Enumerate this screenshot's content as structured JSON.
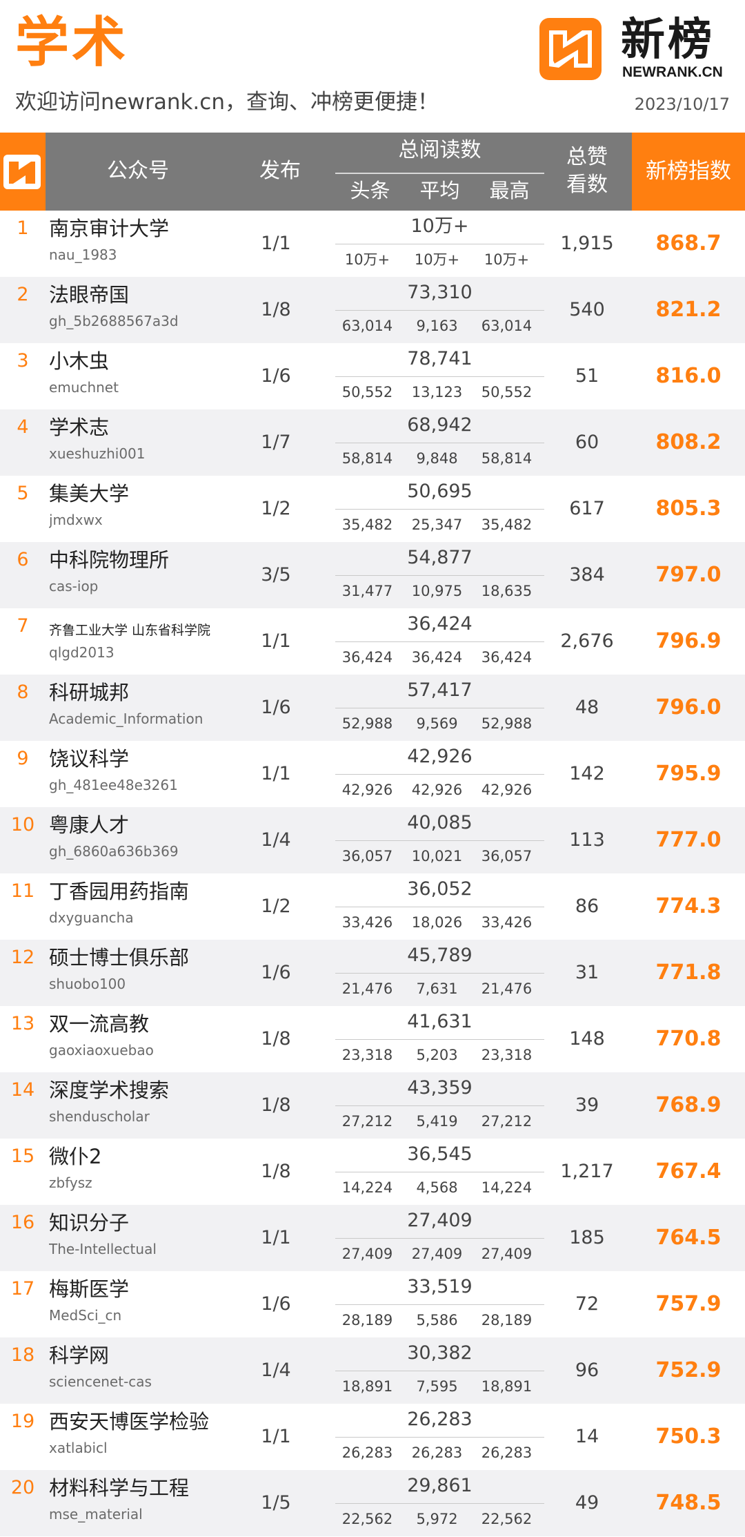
{
  "header": {
    "category": "学术",
    "welcome": "欢迎访问newrank.cn，查询、冲榜更便捷！",
    "date": "2023/10/17",
    "brand_cn": "新榜",
    "brand_en": "NEWRANK.CN",
    "brand_icon": "newrank-logo-icon"
  },
  "colors": {
    "accent": "#ff7f10",
    "header_gray": "#7a7a7a",
    "row_alt": "#f1f1f3"
  },
  "table": {
    "columns": {
      "account": "公众号",
      "publish": "发布",
      "total_reads": "总阅读数",
      "headline": "头条",
      "average": "平均",
      "max": "最高",
      "likes": "总赞\n看数",
      "index": "新榜指数"
    },
    "rows": [
      {
        "rank": "1",
        "name": "南京审计大学",
        "id": "nau_1983",
        "publish": "1/1",
        "avg_main": "10万+",
        "head": "10万+",
        "avg": "10万+",
        "max": "10万+",
        "likes": "1,915",
        "index": "868.7"
      },
      {
        "rank": "2",
        "name": "法眼帝国",
        "id": "gh_5b2688567a3d",
        "publish": "1/8",
        "avg_main": "73,310",
        "head": "63,014",
        "avg": "9,163",
        "max": "63,014",
        "likes": "540",
        "index": "821.2"
      },
      {
        "rank": "3",
        "name": "小木虫",
        "id": "emuchnet",
        "publish": "1/6",
        "avg_main": "78,741",
        "head": "50,552",
        "avg": "13,123",
        "max": "50,552",
        "likes": "51",
        "index": "816.0"
      },
      {
        "rank": "4",
        "name": "学术志",
        "id": "xueshuzhi001",
        "publish": "1/7",
        "avg_main": "68,942",
        "head": "58,814",
        "avg": "9,848",
        "max": "58,814",
        "likes": "60",
        "index": "808.2"
      },
      {
        "rank": "5",
        "name": "集美大学",
        "id": "jmdxwx",
        "publish": "1/2",
        "avg_main": "50,695",
        "head": "35,482",
        "avg": "25,347",
        "max": "35,482",
        "likes": "617",
        "index": "805.3"
      },
      {
        "rank": "6",
        "name": "中科院物理所",
        "id": "cas-iop",
        "publish": "3/5",
        "avg_main": "54,877",
        "head": "31,477",
        "avg": "10,975",
        "max": "18,635",
        "likes": "384",
        "index": "797.0"
      },
      {
        "rank": "7",
        "name": "齐鲁工业大学 山东省科学院",
        "id": "qlgd2013",
        "publish": "1/1",
        "avg_main": "36,424",
        "head": "36,424",
        "avg": "36,424",
        "max": "36,424",
        "likes": "2,676",
        "index": "796.9",
        "small": true
      },
      {
        "rank": "8",
        "name": "科研城邦",
        "id": "Academic_Information",
        "publish": "1/6",
        "avg_main": "57,417",
        "head": "52,988",
        "avg": "9,569",
        "max": "52,988",
        "likes": "48",
        "index": "796.0"
      },
      {
        "rank": "9",
        "name": "饶议科学",
        "id": "gh_481ee48e3261",
        "publish": "1/1",
        "avg_main": "42,926",
        "head": "42,926",
        "avg": "42,926",
        "max": "42,926",
        "likes": "142",
        "index": "795.9"
      },
      {
        "rank": "10",
        "name": "粤康人才",
        "id": "gh_6860a636b369",
        "publish": "1/4",
        "avg_main": "40,085",
        "head": "36,057",
        "avg": "10,021",
        "max": "36,057",
        "likes": "113",
        "index": "777.0"
      },
      {
        "rank": "11",
        "name": "丁香园用药指南",
        "id": "dxyguancha",
        "publish": "1/2",
        "avg_main": "36,052",
        "head": "33,426",
        "avg": "18,026",
        "max": "33,426",
        "likes": "86",
        "index": "774.3"
      },
      {
        "rank": "12",
        "name": "硕士博士俱乐部",
        "id": "shuobo100",
        "publish": "1/6",
        "avg_main": "45,789",
        "head": "21,476",
        "avg": "7,631",
        "max": "21,476",
        "likes": "31",
        "index": "771.8"
      },
      {
        "rank": "13",
        "name": "双一流高教",
        "id": "gaoxiaoxuebao",
        "publish": "1/8",
        "avg_main": "41,631",
        "head": "23,318",
        "avg": "5,203",
        "max": "23,318",
        "likes": "148",
        "index": "770.8"
      },
      {
        "rank": "14",
        "name": "深度学术搜索",
        "id": "shenduscholar",
        "publish": "1/8",
        "avg_main": "43,359",
        "head": "27,212",
        "avg": "5,419",
        "max": "27,212",
        "likes": "39",
        "index": "768.9"
      },
      {
        "rank": "15",
        "name": "微仆2",
        "id": "zbfysz",
        "publish": "1/8",
        "avg_main": "36,545",
        "head": "14,224",
        "avg": "4,568",
        "max": "14,224",
        "likes": "1,217",
        "index": "767.4"
      },
      {
        "rank": "16",
        "name": "知识分子",
        "id": "The-Intellectual",
        "publish": "1/1",
        "avg_main": "27,409",
        "head": "27,409",
        "avg": "27,409",
        "max": "27,409",
        "likes": "185",
        "index": "764.5"
      },
      {
        "rank": "17",
        "name": "梅斯医学",
        "id": "MedSci_cn",
        "publish": "1/6",
        "avg_main": "33,519",
        "head": "28,189",
        "avg": "5,586",
        "max": "28,189",
        "likes": "72",
        "index": "757.9"
      },
      {
        "rank": "18",
        "name": "科学网",
        "id": "sciencenet-cas",
        "publish": "1/4",
        "avg_main": "30,382",
        "head": "18,891",
        "avg": "7,595",
        "max": "18,891",
        "likes": "96",
        "index": "752.9"
      },
      {
        "rank": "19",
        "name": "西安天博医学检验",
        "id": "xatlabicl",
        "publish": "1/1",
        "avg_main": "26,283",
        "head": "26,283",
        "avg": "26,283",
        "max": "26,283",
        "likes": "14",
        "index": "750.3"
      },
      {
        "rank": "20",
        "name": "材料科学与工程",
        "id": "mse_material",
        "publish": "1/5",
        "avg_main": "29,861",
        "head": "22,562",
        "avg": "5,972",
        "max": "22,562",
        "likes": "49",
        "index": "748.5"
      }
    ]
  }
}
